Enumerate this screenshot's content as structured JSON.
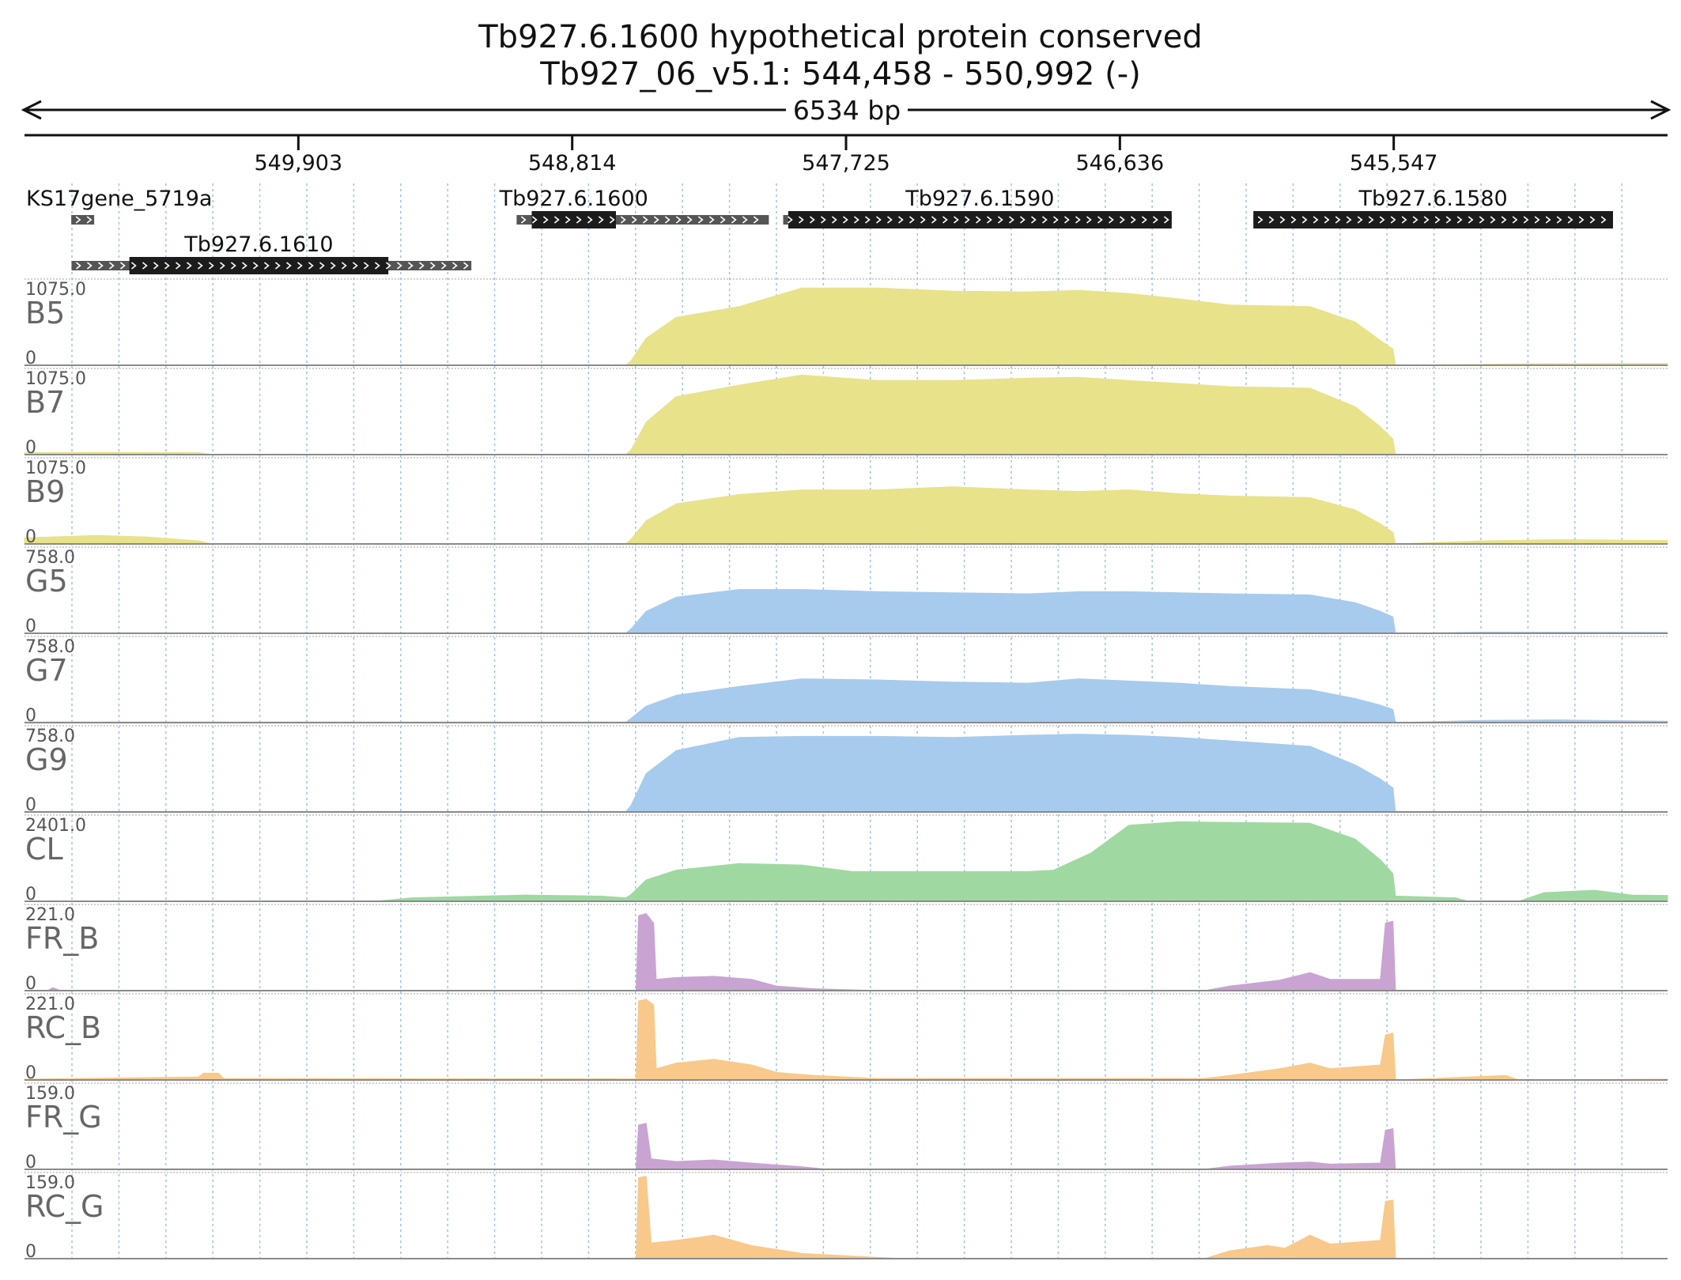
{
  "header": {
    "title": "Tb927.6.1600  hypothetical protein  conserved",
    "location": "Tb927_06_v5.1: 544,458 - 550,992 (-)",
    "span_label": "6534 bp"
  },
  "coordinates": {
    "start": 544458,
    "end": 550992,
    "strand": "-",
    "ticks": [
      {
        "value": 549903,
        "label": "549,903"
      },
      {
        "value": 548814,
        "label": "548,814"
      },
      {
        "value": 547725,
        "label": "547,725"
      },
      {
        "value": 546636,
        "label": "546,636"
      },
      {
        "value": 545547,
        "label": "545,547"
      }
    ]
  },
  "genes": [
    {
      "name": "KS17gene_5719a",
      "label": "KS17gene_5719a",
      "row": 0,
      "extent": [
        550806,
        550715
      ],
      "cds": null
    },
    {
      "name": "Tb927.6.1610",
      "label": "Tb927.6.1610",
      "row": 1,
      "extent": [
        550805,
        549215
      ],
      "cds": [
        550575,
        549545
      ]
    },
    {
      "name": "Tb927.6.1600",
      "label": "Tb927.6.1600",
      "row": 0,
      "extent": [
        549035,
        548032
      ],
      "cds": [
        548975,
        548640
      ]
    },
    {
      "name": "Tb927.6.1590",
      "label": "Tb927.6.1590",
      "row": 0,
      "extent": [
        547975,
        546430
      ],
      "cds": [
        547955,
        546430
      ]
    },
    {
      "name": "Tb927.6.1580",
      "label": "Tb927.6.1580",
      "row": 0,
      "extent": [
        546105,
        544675
      ],
      "cds": [
        546105,
        544675
      ]
    }
  ],
  "colors": {
    "B": "#e8e28a",
    "G": "#a6cbed",
    "CL": "#9fd9a1",
    "FR": "#c9a4d2",
    "RC": "#f8c98a",
    "gene_cds": "#1c1c1c",
    "gene_utr": "#555555",
    "grid": "#9cc3e8",
    "track_border": "#8a8a8a"
  },
  "chart_data": {
    "type": "area",
    "x_axis": "genomic position (bp)",
    "xlim": [
      550992,
      544458
    ],
    "tracks": [
      {
        "name": "B5",
        "max": "1075.0",
        "min": "0",
        "ymax": 1075,
        "color": "B",
        "profile": [
          [
            550992,
            4
          ],
          [
            549700,
            2
          ],
          [
            548600,
            3
          ],
          [
            548580,
            60
          ],
          [
            548520,
            350
          ],
          [
            548400,
            620
          ],
          [
            548150,
            760
          ],
          [
            547900,
            1000
          ],
          [
            547600,
            1000
          ],
          [
            547300,
            960
          ],
          [
            547000,
            950
          ],
          [
            546800,
            970
          ],
          [
            546600,
            930
          ],
          [
            546400,
            860
          ],
          [
            546200,
            780
          ],
          [
            545880,
            760
          ],
          [
            545700,
            560
          ],
          [
            545600,
            320
          ],
          [
            545550,
            210
          ],
          [
            545540,
            0
          ],
          [
            545000,
            20
          ],
          [
            544458,
            25
          ]
        ]
      },
      {
        "name": "B7",
        "max": "1075.0",
        "min": "0",
        "ymax": 1075,
        "color": "B",
        "profile": [
          [
            550992,
            25
          ],
          [
            550700,
            30
          ],
          [
            550300,
            25
          ],
          [
            550250,
            0
          ],
          [
            548600,
            3
          ],
          [
            548580,
            60
          ],
          [
            548520,
            420
          ],
          [
            548400,
            750
          ],
          [
            548150,
            900
          ],
          [
            547900,
            1030
          ],
          [
            547600,
            960
          ],
          [
            547300,
            960
          ],
          [
            547000,
            990
          ],
          [
            546800,
            1000
          ],
          [
            546600,
            960
          ],
          [
            546400,
            920
          ],
          [
            546200,
            880
          ],
          [
            545880,
            860
          ],
          [
            545700,
            620
          ],
          [
            545600,
            360
          ],
          [
            545550,
            200
          ],
          [
            545540,
            0
          ],
          [
            544458,
            3
          ]
        ]
      },
      {
        "name": "B9",
        "max": "1075.0",
        "min": "0",
        "ymax": 1075,
        "color": "B",
        "profile": [
          [
            550992,
            80
          ],
          [
            550700,
            110
          ],
          [
            550500,
            90
          ],
          [
            550300,
            40
          ],
          [
            550250,
            0
          ],
          [
            548600,
            3
          ],
          [
            548580,
            60
          ],
          [
            548520,
            300
          ],
          [
            548400,
            520
          ],
          [
            548150,
            640
          ],
          [
            547900,
            700
          ],
          [
            547600,
            700
          ],
          [
            547300,
            740
          ],
          [
            547000,
            700
          ],
          [
            546800,
            680
          ],
          [
            546600,
            700
          ],
          [
            546400,
            650
          ],
          [
            546200,
            620
          ],
          [
            545880,
            600
          ],
          [
            545700,
            440
          ],
          [
            545600,
            260
          ],
          [
            545550,
            150
          ],
          [
            545540,
            0
          ],
          [
            545200,
            40
          ],
          [
            544900,
            55
          ],
          [
            544458,
            45
          ]
        ]
      },
      {
        "name": "G5",
        "max": "758.0",
        "min": "0",
        "ymax": 758,
        "color": "G",
        "profile": [
          [
            550992,
            3
          ],
          [
            548600,
            3
          ],
          [
            548580,
            40
          ],
          [
            548520,
            200
          ],
          [
            548400,
            330
          ],
          [
            548150,
            400
          ],
          [
            547900,
            400
          ],
          [
            547600,
            380
          ],
          [
            547300,
            370
          ],
          [
            547000,
            360
          ],
          [
            546800,
            380
          ],
          [
            546600,
            380
          ],
          [
            546400,
            370
          ],
          [
            546200,
            360
          ],
          [
            545880,
            350
          ],
          [
            545700,
            280
          ],
          [
            545600,
            200
          ],
          [
            545550,
            150
          ],
          [
            545540,
            0
          ],
          [
            545200,
            10
          ],
          [
            544458,
            8
          ]
        ]
      },
      {
        "name": "G7",
        "max": "758.0",
        "min": "0",
        "ymax": 758,
        "color": "G",
        "profile": [
          [
            550992,
            6
          ],
          [
            548600,
            5
          ],
          [
            548580,
            40
          ],
          [
            548520,
            150
          ],
          [
            548400,
            250
          ],
          [
            548150,
            330
          ],
          [
            547900,
            400
          ],
          [
            547600,
            390
          ],
          [
            547300,
            370
          ],
          [
            547000,
            360
          ],
          [
            546800,
            400
          ],
          [
            546600,
            380
          ],
          [
            546400,
            360
          ],
          [
            546200,
            330
          ],
          [
            545880,
            300
          ],
          [
            545700,
            220
          ],
          [
            545600,
            160
          ],
          [
            545550,
            120
          ],
          [
            545540,
            0
          ],
          [
            545200,
            20
          ],
          [
            544900,
            25
          ],
          [
            544458,
            12
          ]
        ]
      },
      {
        "name": "G9",
        "max": "758.0",
        "min": "0",
        "ymax": 758,
        "color": "G",
        "profile": [
          [
            550992,
            4
          ],
          [
            548600,
            4
          ],
          [
            548580,
            60
          ],
          [
            548520,
            350
          ],
          [
            548400,
            560
          ],
          [
            548150,
            680
          ],
          [
            547900,
            690
          ],
          [
            547600,
            690
          ],
          [
            547300,
            680
          ],
          [
            547000,
            700
          ],
          [
            546800,
            710
          ],
          [
            546600,
            700
          ],
          [
            546400,
            680
          ],
          [
            546200,
            650
          ],
          [
            545880,
            600
          ],
          [
            545700,
            430
          ],
          [
            545600,
            300
          ],
          [
            545550,
            220
          ],
          [
            545540,
            0
          ],
          [
            544458,
            4
          ]
        ]
      },
      {
        "name": "CL",
        "max": "2401.0",
        "min": "0",
        "ymax": 2401,
        "color": "CL",
        "profile": [
          [
            550992,
            0
          ],
          [
            549600,
            0
          ],
          [
            549450,
            100
          ],
          [
            549000,
            180
          ],
          [
            548700,
            150
          ],
          [
            548600,
            100
          ],
          [
            548580,
            200
          ],
          [
            548520,
            620
          ],
          [
            548400,
            900
          ],
          [
            548150,
            1090
          ],
          [
            547900,
            1050
          ],
          [
            547700,
            860
          ],
          [
            547400,
            860
          ],
          [
            547000,
            860
          ],
          [
            546900,
            900
          ],
          [
            546750,
            1400
          ],
          [
            546600,
            2200
          ],
          [
            546400,
            2300
          ],
          [
            546200,
            2280
          ],
          [
            545880,
            2260
          ],
          [
            545700,
            1800
          ],
          [
            545600,
            1200
          ],
          [
            545550,
            800
          ],
          [
            545540,
            150
          ],
          [
            545300,
            100
          ],
          [
            545250,
            0
          ],
          [
            545050,
            0
          ],
          [
            544950,
            250
          ],
          [
            544750,
            320
          ],
          [
            544600,
            180
          ],
          [
            544458,
            170
          ]
        ]
      },
      {
        "name": "FR_B",
        "max": "221.0",
        "min": "0",
        "ymax": 221,
        "color": "FR",
        "profile": [
          [
            550992,
            0
          ],
          [
            550900,
            0
          ],
          [
            550880,
            8
          ],
          [
            550850,
            0
          ],
          [
            548560,
            0
          ],
          [
            548550,
            200
          ],
          [
            548520,
            205
          ],
          [
            548490,
            180
          ],
          [
            548480,
            30
          ],
          [
            548400,
            35
          ],
          [
            548250,
            38
          ],
          [
            548100,
            30
          ],
          [
            548000,
            12
          ],
          [
            547850,
            5
          ],
          [
            547600,
            0
          ],
          [
            546300,
            0
          ],
          [
            546200,
            12
          ],
          [
            546100,
            20
          ],
          [
            546000,
            28
          ],
          [
            545880,
            48
          ],
          [
            545800,
            30
          ],
          [
            545700,
            30
          ],
          [
            545600,
            30
          ],
          [
            545580,
            180
          ],
          [
            545550,
            185
          ],
          [
            545540,
            0
          ],
          [
            544458,
            0
          ]
        ]
      },
      {
        "name": "RC_B",
        "max": "221.0",
        "min": "0",
        "ymax": 221,
        "color": "RC",
        "profile": [
          [
            550992,
            2
          ],
          [
            550300,
            8
          ],
          [
            550280,
            18
          ],
          [
            550220,
            18
          ],
          [
            550200,
            4
          ],
          [
            548560,
            3
          ],
          [
            548550,
            210
          ],
          [
            548520,
            215
          ],
          [
            548490,
            200
          ],
          [
            548480,
            30
          ],
          [
            548400,
            45
          ],
          [
            548250,
            55
          ],
          [
            548100,
            40
          ],
          [
            548000,
            20
          ],
          [
            547850,
            12
          ],
          [
            547600,
            4
          ],
          [
            546300,
            4
          ],
          [
            546200,
            12
          ],
          [
            546000,
            30
          ],
          [
            545880,
            45
          ],
          [
            545800,
            30
          ],
          [
            545600,
            40
          ],
          [
            545580,
            120
          ],
          [
            545550,
            125
          ],
          [
            545540,
            0
          ],
          [
            545100,
            12
          ],
          [
            545050,
            0
          ],
          [
            544458,
            2
          ]
        ]
      },
      {
        "name": "FR_G",
        "max": "159.0",
        "min": "0",
        "ymax": 159,
        "color": "FR",
        "profile": [
          [
            550992,
            0
          ],
          [
            548560,
            0
          ],
          [
            548550,
            85
          ],
          [
            548520,
            88
          ],
          [
            548500,
            20
          ],
          [
            548400,
            15
          ],
          [
            548250,
            18
          ],
          [
            548100,
            12
          ],
          [
            547900,
            5
          ],
          [
            547800,
            0
          ],
          [
            546300,
            0
          ],
          [
            546200,
            6
          ],
          [
            546000,
            12
          ],
          [
            545880,
            14
          ],
          [
            545800,
            10
          ],
          [
            545600,
            12
          ],
          [
            545580,
            75
          ],
          [
            545550,
            78
          ],
          [
            545540,
            0
          ],
          [
            544458,
            0
          ]
        ]
      },
      {
        "name": "RC_G",
        "max": "159.0",
        "min": "0",
        "ymax": 159,
        "color": "RC",
        "profile": [
          [
            550992,
            0
          ],
          [
            548560,
            0
          ],
          [
            548550,
            155
          ],
          [
            548520,
            158
          ],
          [
            548500,
            30
          ],
          [
            548400,
            35
          ],
          [
            548250,
            45
          ],
          [
            548100,
            25
          ],
          [
            547900,
            10
          ],
          [
            547700,
            5
          ],
          [
            547500,
            0
          ],
          [
            546300,
            0
          ],
          [
            546200,
            15
          ],
          [
            546050,
            25
          ],
          [
            545980,
            20
          ],
          [
            545880,
            45
          ],
          [
            545800,
            28
          ],
          [
            545600,
            35
          ],
          [
            545580,
            110
          ],
          [
            545550,
            112
          ],
          [
            545540,
            0
          ],
          [
            544458,
            0
          ]
        ]
      }
    ]
  }
}
